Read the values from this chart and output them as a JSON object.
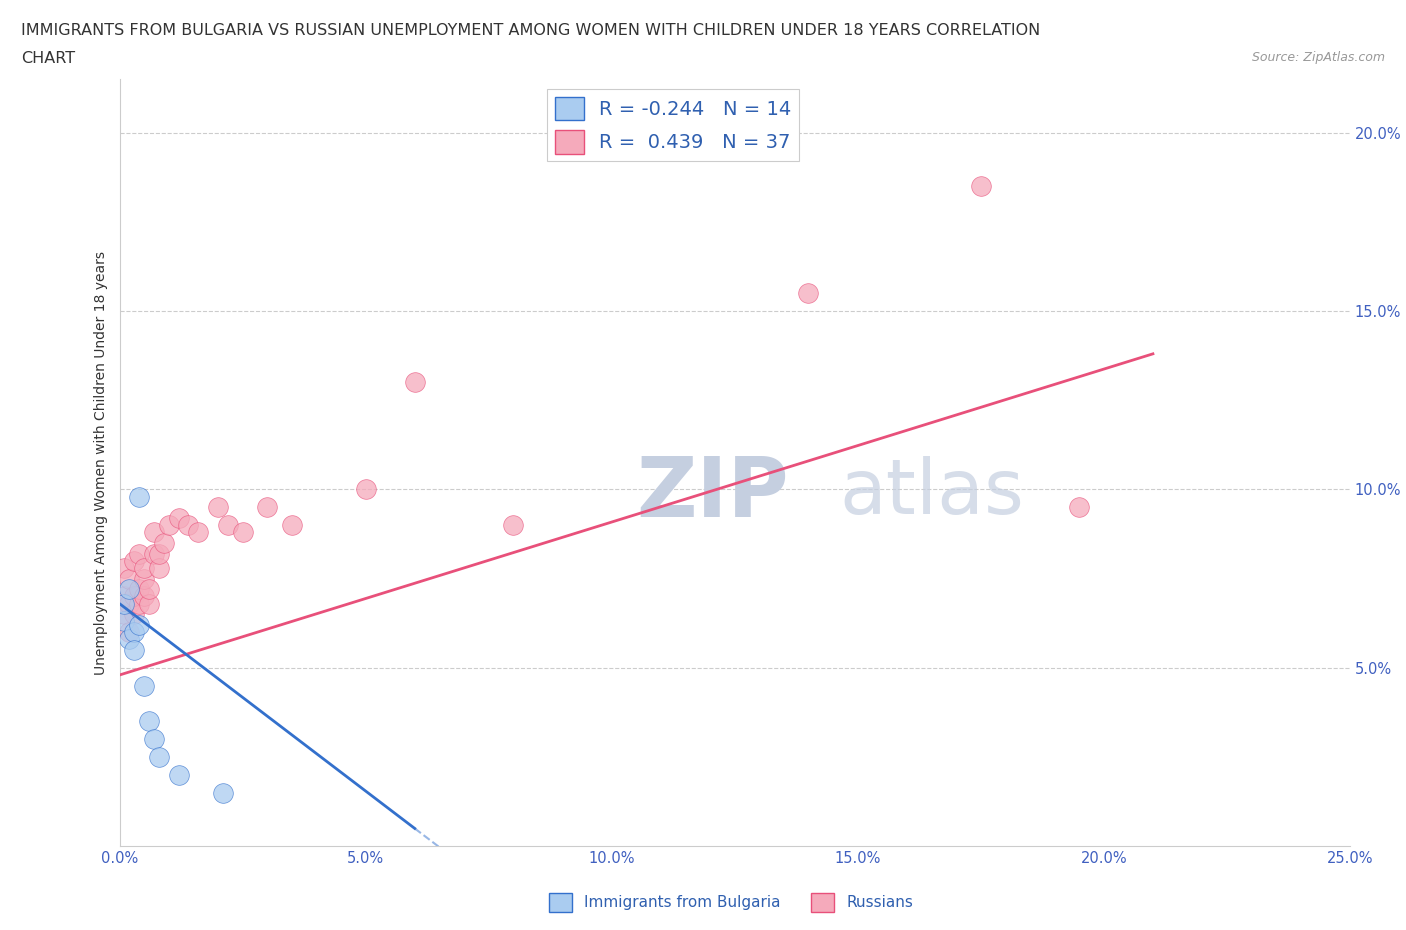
{
  "title_line1": "IMMIGRANTS FROM BULGARIA VS RUSSIAN UNEMPLOYMENT AMONG WOMEN WITH CHILDREN UNDER 18 YEARS CORRELATION",
  "title_line2": "CHART",
  "source": "Source: ZipAtlas.com",
  "ylabel": "Unemployment Among Women with Children Under 18 years",
  "xlim": [
    0.0,
    0.25
  ],
  "ylim": [
    0.0,
    0.215
  ],
  "xticks": [
    0.0,
    0.05,
    0.1,
    0.15,
    0.2,
    0.25
  ],
  "xtick_labels": [
    "0.0%",
    "5.0%",
    "10.0%",
    "15.0%",
    "20.0%",
    "25.0%"
  ],
  "ytick_positions": [
    0.05,
    0.1,
    0.15,
    0.2
  ],
  "ytick_labels": [
    "5.0%",
    "10.0%",
    "15.0%",
    "20.0%"
  ],
  "legend_labels": [
    "Immigrants from Bulgaria",
    "Russians"
  ],
  "R_bulgaria": -0.244,
  "N_bulgaria": 14,
  "R_russians": 0.439,
  "N_russians": 37,
  "bulgaria_color": "#aaccf0",
  "russia_color": "#f5aabb",
  "trend_bulgaria_color": "#3370cc",
  "trend_russia_color": "#e8507a",
  "background_color": "#ffffff",
  "grid_color": "#cccccc",
  "title_color": "#333333",
  "text_watermark": "ZIPatlas",
  "watermark_color": "#dde3f0",
  "bulgaria_x": [
    0.001,
    0.001,
    0.002,
    0.002,
    0.003,
    0.003,
    0.004,
    0.004,
    0.005,
    0.006,
    0.007,
    0.008,
    0.012,
    0.021
  ],
  "bulgaria_y": [
    0.063,
    0.068,
    0.058,
    0.072,
    0.06,
    0.055,
    0.098,
    0.062,
    0.045,
    0.035,
    0.03,
    0.025,
    0.02,
    0.015
  ],
  "russia_x": [
    0.001,
    0.001,
    0.001,
    0.002,
    0.002,
    0.002,
    0.003,
    0.003,
    0.003,
    0.004,
    0.004,
    0.004,
    0.005,
    0.005,
    0.005,
    0.006,
    0.006,
    0.007,
    0.007,
    0.008,
    0.008,
    0.009,
    0.01,
    0.012,
    0.014,
    0.016,
    0.02,
    0.022,
    0.025,
    0.03,
    0.035,
    0.05,
    0.06,
    0.08,
    0.14,
    0.175,
    0.195
  ],
  "russia_y": [
    0.065,
    0.07,
    0.078,
    0.06,
    0.068,
    0.075,
    0.065,
    0.07,
    0.08,
    0.068,
    0.072,
    0.082,
    0.07,
    0.075,
    0.078,
    0.068,
    0.072,
    0.082,
    0.088,
    0.078,
    0.082,
    0.085,
    0.09,
    0.092,
    0.09,
    0.088,
    0.095,
    0.09,
    0.088,
    0.095,
    0.09,
    0.1,
    0.13,
    0.09,
    0.155,
    0.185,
    0.095
  ],
  "trend_russia_x_start": 0.0,
  "trend_russia_x_end": 0.21,
  "trend_russia_y_start": 0.048,
  "trend_russia_y_end": 0.138,
  "trend_bulgaria_solid_x_start": 0.0,
  "trend_bulgaria_solid_x_end": 0.06,
  "trend_bulgaria_y_start": 0.068,
  "trend_bulgaria_slope": -1.05,
  "trend_bulgaria_dashed_x_end": 0.18
}
